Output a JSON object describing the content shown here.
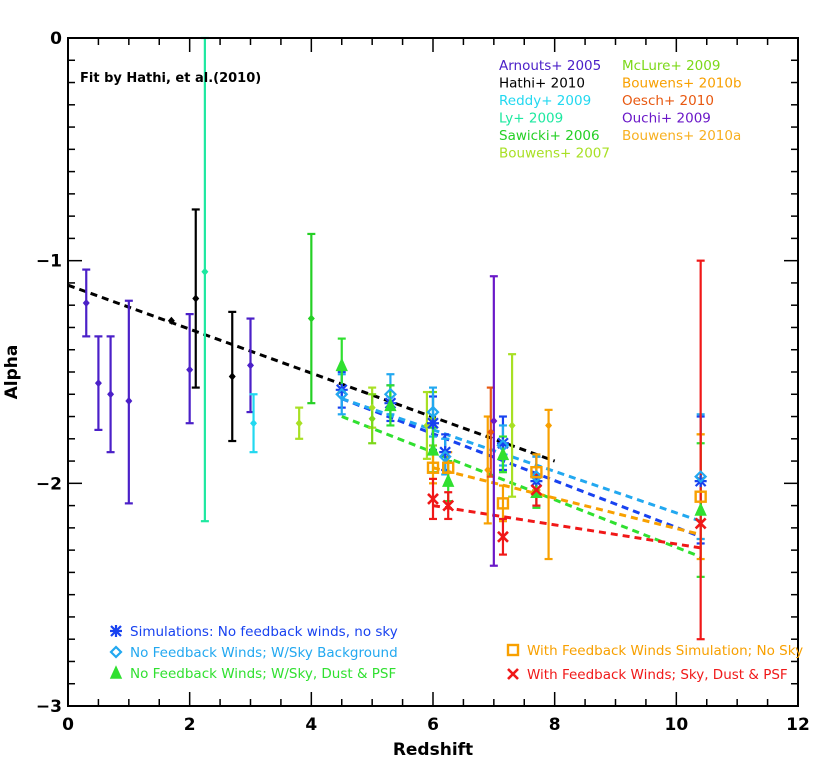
{
  "chart_data": {
    "type": "scatter",
    "xlabel": "Redshift",
    "ylabel": "Alpha",
    "xlim": [
      0,
      12
    ],
    "ylim": [
      -3,
      0
    ],
    "x_ticks": [
      0,
      2,
      4,
      6,
      8,
      10,
      12
    ],
    "y_ticks": [
      0,
      -1,
      -2,
      -3
    ],
    "x_tick_labels": [
      "0",
      "2",
      "4",
      "6",
      "8",
      "10",
      "12"
    ],
    "y_tick_labels": [
      "0",
      "−1",
      "−2",
      "−3"
    ],
    "grid": false,
    "annotation": "Fit by Hathi, et al.(2010)",
    "observations": [
      {
        "name": "Arnouts+ 2005",
        "color": "#4B20C8",
        "points": [
          {
            "x": 0.3,
            "y": -1.19,
            "lo": -1.34,
            "hi": -1.04
          },
          {
            "x": 0.5,
            "y": -1.55,
            "lo": -1.76,
            "hi": -1.34
          },
          {
            "x": 0.7,
            "y": -1.6,
            "lo": -1.86,
            "hi": -1.34
          },
          {
            "x": 1.0,
            "y": -1.63,
            "lo": -2.09,
            "hi": -1.18
          },
          {
            "x": 2.0,
            "y": -1.49,
            "lo": -1.73,
            "hi": -1.24
          },
          {
            "x": 3.0,
            "y": -1.47,
            "lo": -1.68,
            "hi": -1.26
          }
        ]
      },
      {
        "name": "Hathi+ 2010",
        "color": "#000000",
        "points": [
          {
            "x": 1.7,
            "y": -1.27,
            "lo": -1.27,
            "hi": -1.27
          },
          {
            "x": 2.1,
            "y": -1.17,
            "lo": -1.57,
            "hi": -0.77
          },
          {
            "x": 2.7,
            "y": -1.52,
            "lo": -1.81,
            "hi": -1.23
          }
        ]
      },
      {
        "name": "Reddy+ 2009",
        "color": "#22D8F0",
        "points": [
          {
            "x": 3.05,
            "y": -1.73,
            "lo": -1.86,
            "hi": -1.6
          }
        ]
      },
      {
        "name": "Ly+ 2009",
        "color": "#1EE8A0",
        "points": [
          {
            "x": 2.25,
            "y": -1.05,
            "lo": -2.17,
            "hi": 0.0
          }
        ]
      },
      {
        "name": "Sawicki+ 2006",
        "color": "#25D025",
        "points": [
          {
            "x": 4.0,
            "y": -1.26,
            "lo": -1.64,
            "hi": -0.88
          }
        ]
      },
      {
        "name": "Bouwens+ 2007",
        "color": "#A8E024",
        "points": [
          {
            "x": 3.8,
            "y": -1.73,
            "lo": -1.8,
            "hi": -1.66
          },
          {
            "x": 5.0,
            "y": -1.66,
            "lo": -1.75,
            "hi": -1.57
          },
          {
            "x": 5.9,
            "y": -1.74,
            "lo": -1.89,
            "hi": -1.59
          },
          {
            "x": 7.3,
            "y": -1.74,
            "lo": -2.06,
            "hi": -1.42
          }
        ]
      },
      {
        "name": "McLure+ 2009",
        "color": "#7CD818",
        "points": [
          {
            "x": 5.0,
            "y": -1.71,
            "lo": -1.82,
            "hi": -1.6
          },
          {
            "x": 6.0,
            "y": -1.71,
            "lo": -1.83,
            "hi": -1.59
          }
        ]
      },
      {
        "name": "Bouwens+ 2010b",
        "color": "#F8A000",
        "points": [
          {
            "x": 6.9,
            "y": -1.94,
            "lo": -2.18,
            "hi": -1.7
          },
          {
            "x": 7.9,
            "y": -1.74,
            "lo": -2.34,
            "hi": -1.67
          }
        ]
      },
      {
        "name": "Oesch+ 2010",
        "color": "#E85810",
        "points": [
          {
            "x": 6.95,
            "y": -1.77,
            "lo": -1.97,
            "hi": -1.57
          }
        ]
      },
      {
        "name": "Ouchi+ 2009",
        "color": "#6A18C8",
        "points": [
          {
            "x": 7.0,
            "y": -1.72,
            "lo": -2.37,
            "hi": -1.07
          }
        ]
      },
      {
        "name": "Bouwens+ 2010a",
        "color": "#F8B020",
        "points": [
          {
            "x": 10.4,
            "y": -1.98,
            "lo": -2.25,
            "hi": -1.78
          }
        ]
      }
    ],
    "simulations": [
      {
        "name": "Simulations: No feedback winds, no sky",
        "color": "#1842F0",
        "marker": "asterisk",
        "points": [
          {
            "x": 4.5,
            "y": -1.58,
            "lo": -1.66,
            "hi": -1.5
          },
          {
            "x": 5.3,
            "y": -1.64,
            "lo": -1.72,
            "hi": -1.56
          },
          {
            "x": 6.0,
            "y": -1.73,
            "lo": -1.85,
            "hi": -1.61
          },
          {
            "x": 6.2,
            "y": -1.86,
            "lo": -1.94,
            "hi": -1.78
          },
          {
            "x": 7.15,
            "y": -1.82,
            "lo": -1.94,
            "hi": -1.7
          },
          {
            "x": 7.7,
            "y": -1.99,
            "lo": -2.1,
            "hi": -1.88
          },
          {
            "x": 10.4,
            "y": -1.99,
            "lo": -2.27,
            "hi": -1.7
          }
        ]
      },
      {
        "name": "No Feedback Winds; W/Sky Background",
        "color": "#22A8F0",
        "marker": "diamond",
        "points": [
          {
            "x": 4.5,
            "y": -1.6,
            "lo": -1.69,
            "hi": -1.51
          },
          {
            "x": 5.3,
            "y": -1.6,
            "lo": -1.69,
            "hi": -1.51
          },
          {
            "x": 6.0,
            "y": -1.68,
            "lo": -1.79,
            "hi": -1.57
          },
          {
            "x": 6.2,
            "y": -1.88,
            "lo": -1.96,
            "hi": -1.8
          },
          {
            "x": 7.15,
            "y": -1.83,
            "lo": -1.92,
            "hi": -1.74
          },
          {
            "x": 7.7,
            "y": -1.97,
            "lo": -2.06,
            "hi": -1.88
          },
          {
            "x": 10.4,
            "y": -1.97,
            "lo": -2.25,
            "hi": -1.69
          }
        ]
      },
      {
        "name": "No Feedback Winds; W/Sky, Dust & PSF",
        "color": "#30E030",
        "marker": "triangle",
        "points": [
          {
            "x": 4.5,
            "y": -1.47,
            "lo": -1.59,
            "hi": -1.35
          },
          {
            "x": 5.3,
            "y": -1.65,
            "lo": -1.74,
            "hi": -1.56
          },
          {
            "x": 6.0,
            "y": -1.85,
            "lo": -1.95,
            "hi": -1.75
          },
          {
            "x": 6.25,
            "y": -1.99,
            "lo": -2.08,
            "hi": -1.9
          },
          {
            "x": 7.15,
            "y": -1.87,
            "lo": -1.95,
            "hi": -1.79
          },
          {
            "x": 7.7,
            "y": -2.04,
            "lo": -2.11,
            "hi": -1.97
          },
          {
            "x": 10.4,
            "y": -2.12,
            "lo": -2.42,
            "hi": -1.82
          }
        ]
      },
      {
        "name": "With Feedback Winds Simulation; No Sky",
        "color": "#F8A000",
        "marker": "square",
        "points": [
          {
            "x": 6.0,
            "y": -1.93,
            "lo": -2.0,
            "hi": -1.86
          },
          {
            "x": 6.25,
            "y": -1.93,
            "lo": -2.0,
            "hi": -1.86
          },
          {
            "x": 7.15,
            "y": -2.09,
            "lo": -2.17,
            "hi": -2.01
          },
          {
            "x": 7.7,
            "y": -1.95,
            "lo": -2.03,
            "hi": -1.87
          },
          {
            "x": 10.4,
            "y": -2.06,
            "lo": -2.34,
            "hi": -1.78
          }
        ]
      },
      {
        "name": "With Feedback Winds; Sky, Dust & PSF",
        "color": "#F01818",
        "marker": "cross",
        "points": [
          {
            "x": 6.0,
            "y": -2.07,
            "lo": -2.16,
            "hi": -1.98
          },
          {
            "x": 6.25,
            "y": -2.1,
            "lo": -2.16,
            "hi": -2.04
          },
          {
            "x": 7.15,
            "y": -2.24,
            "lo": -2.32,
            "hi": -2.16
          },
          {
            "x": 7.7,
            "y": -2.03,
            "lo": -2.1,
            "hi": -1.96
          },
          {
            "x": 10.4,
            "y": -2.18,
            "lo": -2.7,
            "hi": -1.0
          }
        ]
      }
    ],
    "fits": [
      {
        "color": "#000000",
        "x": [
          0,
          8
        ],
        "y": [
          -1.11,
          -1.9
        ]
      },
      {
        "color": "#1842F0",
        "x": [
          4.5,
          10.4
        ],
        "y": [
          -1.62,
          -2.24
        ]
      },
      {
        "color": "#22A8F0",
        "x": [
          4.5,
          10.4
        ],
        "y": [
          -1.62,
          -2.17
        ]
      },
      {
        "color": "#30E030",
        "x": [
          4.5,
          10.4
        ],
        "y": [
          -1.7,
          -2.33
        ]
      },
      {
        "color": "#F8A000",
        "x": [
          6.0,
          10.4
        ],
        "y": [
          -1.93,
          -2.23
        ]
      },
      {
        "color": "#F01818",
        "x": [
          6.0,
          10.4
        ],
        "y": [
          -2.1,
          -2.29
        ]
      }
    ]
  }
}
